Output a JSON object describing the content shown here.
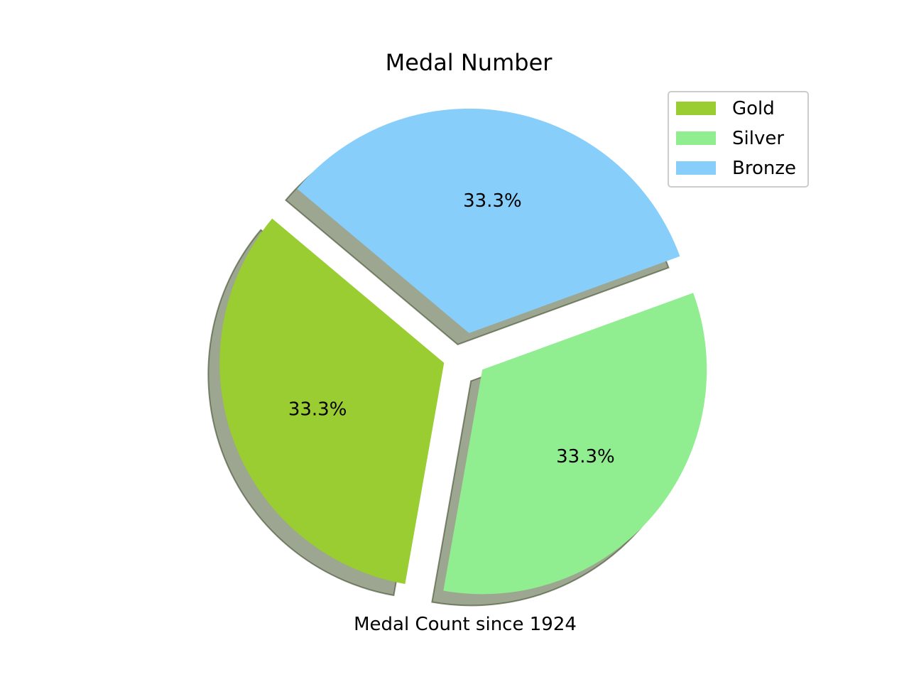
{
  "chart_data": {
    "type": "pie",
    "title": "Medal Number",
    "xlabel": "Medal Count since 1924",
    "categories": [
      "Gold",
      "Silver",
      "Bronze"
    ],
    "values": [
      1,
      1,
      1
    ],
    "percent_labels": [
      "33.3%",
      "33.3%",
      "33.3%"
    ],
    "colors": [
      "#9acd32",
      "#90ee90",
      "#87cefa"
    ],
    "exploded": true,
    "shadow": true,
    "legend_position": "top-right"
  }
}
